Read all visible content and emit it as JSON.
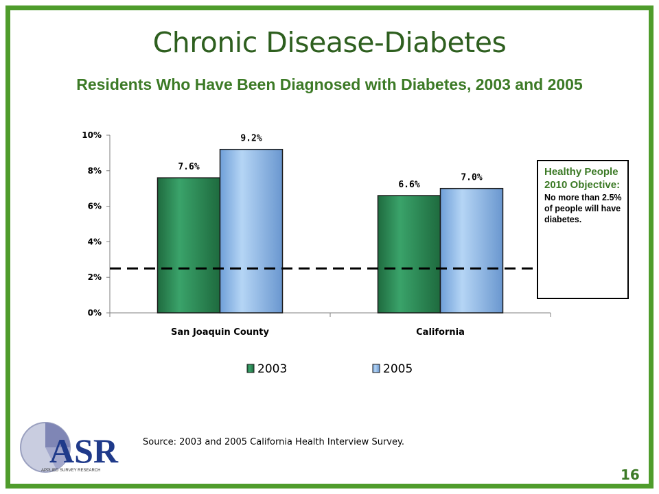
{
  "slide": {
    "title": "Chronic Disease-Diabetes",
    "page_number": "16",
    "source": "Source: 2003 and 2005 California Health Interview Survey.",
    "frame_color": "#4f9c2c",
    "title_color": "#2e5f1f"
  },
  "objective_box": {
    "heading": "Healthy People 2010 Objective:",
    "body": "No more than 2.5% of people will have diabetes."
  },
  "logo": {
    "text": "ASR",
    "subtitle": "APPLIED SURVEY RESEARCH"
  },
  "chart_data": {
    "type": "bar",
    "title": "Residents Who Have Been Diagnosed with Diabetes, 2003 and 2005",
    "categories": [
      "San Joaquin County",
      "California"
    ],
    "series": [
      {
        "name": "2003",
        "values": [
          7.6,
          6.6
        ],
        "labels": [
          "7.6%",
          "6.6%"
        ],
        "color": "#2e8b57"
      },
      {
        "name": "2005",
        "values": [
          9.2,
          7.0
        ],
        "labels": [
          "9.2%",
          "7.0%"
        ],
        "color": "#8fbce8"
      }
    ],
    "ylim": [
      0,
      10
    ],
    "y_ticks": [
      {
        "value": 0,
        "label": "0%"
      },
      {
        "value": 2,
        "label": "2%"
      },
      {
        "value": 4,
        "label": "4%"
      },
      {
        "value": 6,
        "label": "6%"
      },
      {
        "value": 8,
        "label": "8%"
      },
      {
        "value": 10,
        "label": "10%"
      }
    ],
    "reference_line": {
      "value": 2.5,
      "style": "dashed"
    },
    "legend_position": "bottom",
    "grid": false,
    "xlabel": "",
    "ylabel": ""
  }
}
